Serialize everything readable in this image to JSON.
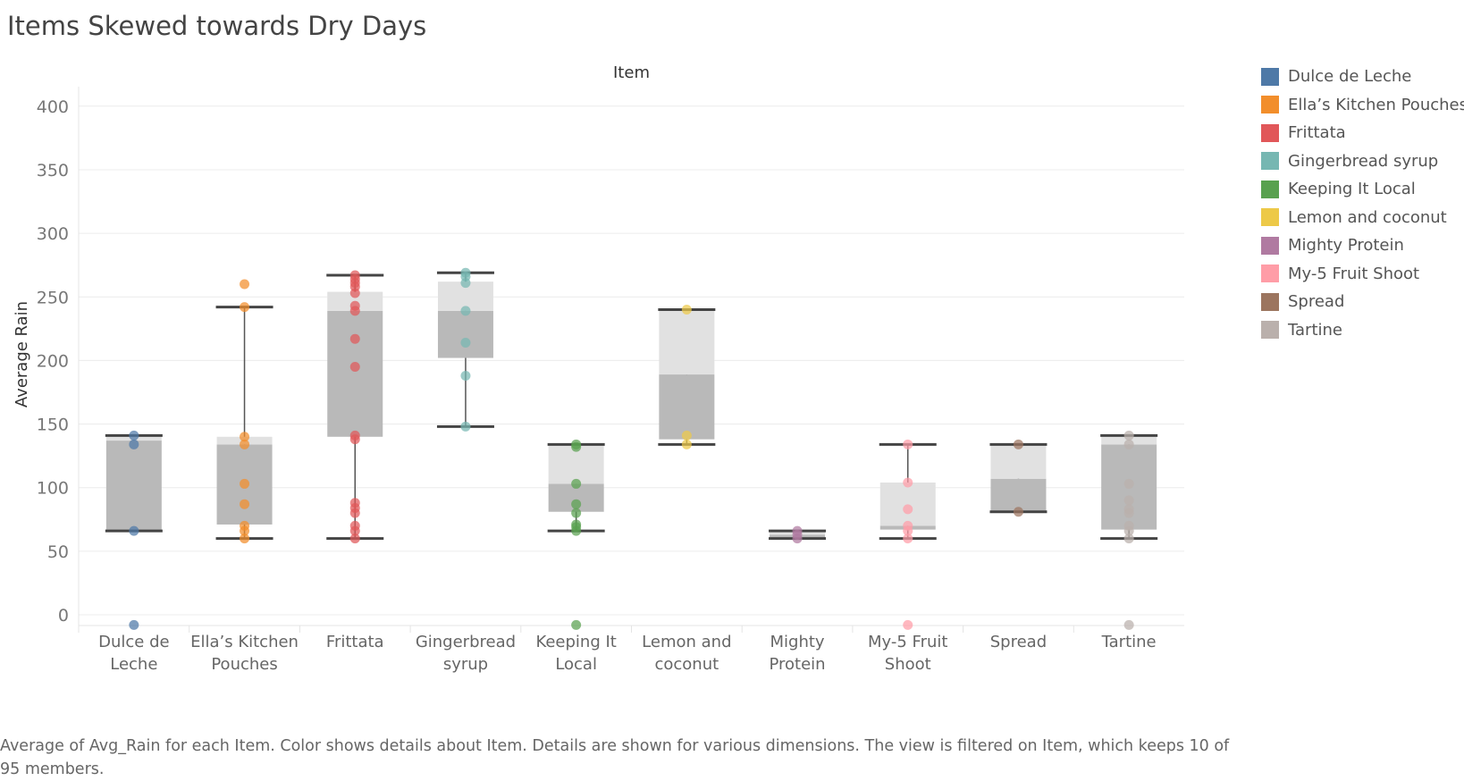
{
  "chart_data": {
    "type": "box",
    "title": "Items Skewed towards Dry Days",
    "column_header": "Item",
    "ylabel": "Average Rain",
    "xlabel": "",
    "ylim": [
      -10,
      420
    ],
    "yticks": [
      0,
      50,
      100,
      150,
      200,
      250,
      300,
      350,
      400
    ],
    "grid": true,
    "legend_placement": "right",
    "caption": "Average of Avg_Rain for each Item.  Color shows details about Item.  Details are shown for various dimensions. The view is filtered on Item, which keeps 10 of 95 members.",
    "categories": [
      {
        "name": "Dulce de Leche",
        "label_lines": [
          "Dulce de",
          "Leche"
        ],
        "color": "#4e79a7",
        "whisker_low": 66,
        "q1": 66,
        "median": 137,
        "q3": 141,
        "whisker_high": 141,
        "points": [
          141,
          134,
          66,
          -8
        ]
      },
      {
        "name": "Ella's Kitchen Pouches",
        "label_lines": [
          "Ella’s Kitchen",
          "Pouches"
        ],
        "color": "#f28e2b",
        "whisker_low": 60,
        "q1": 71,
        "median": 134,
        "q3": 140,
        "whisker_high": 242,
        "points": [
          260,
          242,
          140,
          134,
          103,
          87,
          70,
          66,
          60
        ]
      },
      {
        "name": "Frittata",
        "label_lines": [
          "Frittata"
        ],
        "color": "#e15759",
        "whisker_low": 60,
        "q1": 140,
        "median": 239,
        "q3": 254,
        "whisker_high": 267,
        "points": [
          267,
          264,
          261,
          258,
          253,
          243,
          239,
          217,
          195,
          141,
          138,
          88,
          84,
          80,
          70,
          66,
          60
        ]
      },
      {
        "name": "Gingerbread syrup",
        "label_lines": [
          "Gingerbread",
          "syrup"
        ],
        "color": "#76b7b2",
        "whisker_low": 148,
        "q1": 202,
        "median": 239,
        "q3": 262,
        "whisker_high": 269,
        "points": [
          269,
          266,
          261,
          239,
          214,
          188,
          148
        ]
      },
      {
        "name": "Keeping It Local",
        "label_lines": [
          "Keeping It",
          "Local"
        ],
        "color": "#59a14f",
        "whisker_low": 66,
        "q1": 81,
        "median": 103,
        "q3": 134,
        "whisker_high": 134,
        "points": [
          134,
          132,
          103,
          87,
          80,
          71,
          69,
          66,
          -8
        ]
      },
      {
        "name": "Lemon and coconut",
        "label_lines": [
          "Lemon and",
          "coconut"
        ],
        "color": "#edc948",
        "whisker_low": 134,
        "q1": 138,
        "median": 189,
        "q3": 239,
        "whisker_high": 240,
        "points": [
          240,
          141,
          134
        ]
      },
      {
        "name": "Mighty Protein",
        "label_lines": [
          "Mighty",
          "Protein"
        ],
        "color": "#b07aa1",
        "whisker_low": 60,
        "q1": 60,
        "median": 63,
        "q3": 66,
        "whisker_high": 66,
        "points": [
          66,
          63,
          60
        ]
      },
      {
        "name": "My-5 Fruit Shoot",
        "label_lines": [
          "My-5 Fruit",
          "Shoot"
        ],
        "color": "#ff9da7",
        "whisker_low": 60,
        "q1": 67,
        "median": 70,
        "q3": 104,
        "whisker_high": 134,
        "points": [
          134,
          104,
          83,
          70,
          66,
          60,
          -8
        ]
      },
      {
        "name": "Spread",
        "label_lines": [
          "Spread"
        ],
        "color": "#9c755f",
        "whisker_low": 81,
        "q1": 81,
        "median": 107,
        "q3": 134,
        "whisker_high": 134,
        "points": [
          134,
          81
        ]
      },
      {
        "name": "Tartine",
        "label_lines": [
          "Tartine"
        ],
        "color": "#bab0ac",
        "whisker_low": 60,
        "q1": 67,
        "median": 134,
        "q3": 141,
        "whisker_high": 141,
        "points": [
          141,
          134,
          103,
          90,
          83,
          80,
          70,
          66,
          60,
          -8
        ]
      }
    ]
  },
  "legend": {
    "items": [
      {
        "label": "Dulce de Leche",
        "color": "#4e79a7"
      },
      {
        "label": "Ella’s Kitchen Pouches",
        "color": "#f28e2b"
      },
      {
        "label": "Frittata",
        "color": "#e15759"
      },
      {
        "label": "Gingerbread syrup",
        "color": "#76b7b2"
      },
      {
        "label": "Keeping It Local",
        "color": "#59a14f"
      },
      {
        "label": "Lemon and coconut",
        "color": "#edc948"
      },
      {
        "label": "Mighty Protein",
        "color": "#b07aa1"
      },
      {
        "label": "My-5 Fruit Shoot",
        "color": "#ff9da7"
      },
      {
        "label": "Spread",
        "color": "#9c755f"
      },
      {
        "label": "Tartine",
        "color": "#bab0ac"
      }
    ]
  }
}
